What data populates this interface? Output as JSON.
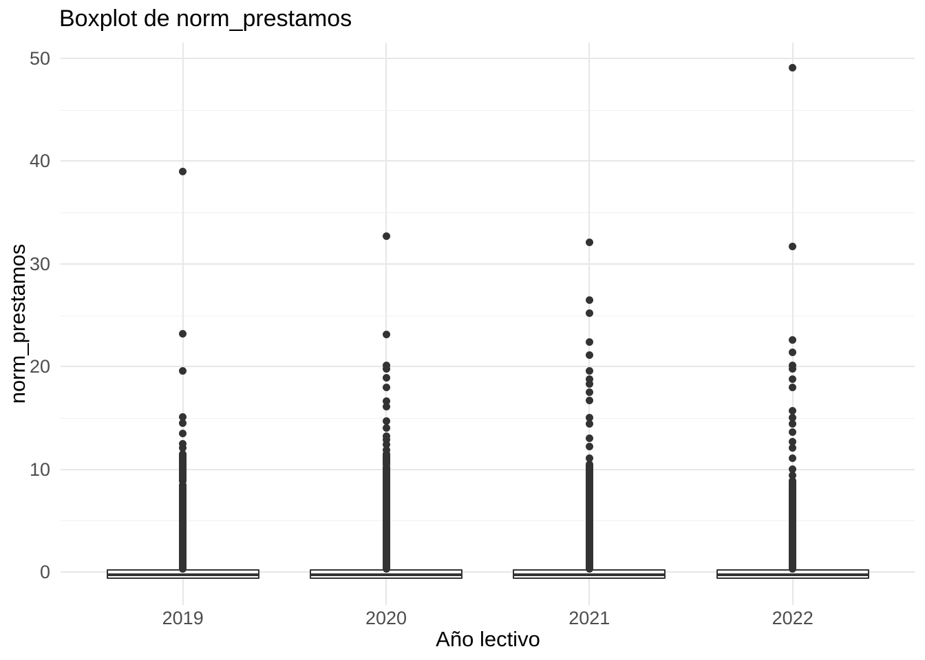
{
  "title": "Boxplot de norm_prestamos",
  "x_axis": {
    "title": "Año lectivo",
    "labels": [
      "2019",
      "2020",
      "2021",
      "2022"
    ]
  },
  "y_axis": {
    "title": "norm_prestamos",
    "labels": [
      "0",
      "10",
      "20",
      "30",
      "40",
      "50"
    ]
  },
  "colors": {
    "ink": "#333333",
    "grid_major": "#e7e7e7",
    "grid_minor": "#f0f0f0",
    "tick_text": "#4d4d4d",
    "title_text": "#000000",
    "background": "#ffffff"
  },
  "chart_data": {
    "type": "boxplot",
    "title": "Boxplot de norm_prestamos",
    "xlabel": "Año lectivo",
    "ylabel": "norm_prestamos",
    "categories": [
      "2019",
      "2020",
      "2021",
      "2022"
    ],
    "yticks": [
      0,
      10,
      20,
      30,
      40,
      50
    ],
    "yticks_minor": [
      5,
      15,
      25,
      35,
      45
    ],
    "ylim": [
      -3.2,
      51.5
    ],
    "grid": "major+minor, light gray, white background (theme_minimal)",
    "legend": false,
    "series": [
      {
        "category": "2019",
        "box": {
          "q1": -0.65,
          "median": -0.25,
          "q3": 0.27
        },
        "dense_outlier_bands": [
          [
            0.3,
            8.5
          ],
          [
            8.9,
            11.5
          ]
        ],
        "outliers": [
          12.1,
          12.5,
          13.5,
          14.5,
          15.1,
          19.6,
          23.2,
          39.0
        ]
      },
      {
        "category": "2020",
        "box": {
          "q1": -0.65,
          "median": -0.25,
          "q3": 0.27
        },
        "dense_outlier_bands": [
          [
            0.3,
            10.2
          ],
          [
            10.5,
            11.5
          ]
        ],
        "outliers": [
          11.9,
          12.4,
          12.9,
          13.2,
          14.0,
          14.7,
          16.1,
          16.6,
          18.0,
          18.9,
          19.8,
          20.1,
          23.1,
          32.7
        ]
      },
      {
        "category": "2021",
        "box": {
          "q1": -0.65,
          "median": -0.25,
          "q3": 0.27
        },
        "dense_outlier_bands": [
          [
            0.3,
            10.5
          ]
        ],
        "outliers": [
          11.1,
          12.2,
          13.0,
          14.4,
          15.0,
          16.7,
          17.5,
          18.3,
          18.8,
          19.6,
          21.1,
          22.4,
          25.2,
          26.5,
          32.1
        ]
      },
      {
        "category": "2022",
        "box": {
          "q1": -0.65,
          "median": -0.25,
          "q3": 0.27
        },
        "dense_outlier_bands": [
          [
            0.3,
            8.9
          ]
        ],
        "outliers": [
          9.4,
          10.0,
          11.1,
          12.1,
          12.7,
          13.6,
          14.4,
          15.0,
          15.7,
          18.0,
          18.8,
          19.8,
          20.1,
          21.4,
          22.6,
          31.7,
          49.1
        ]
      }
    ]
  }
}
